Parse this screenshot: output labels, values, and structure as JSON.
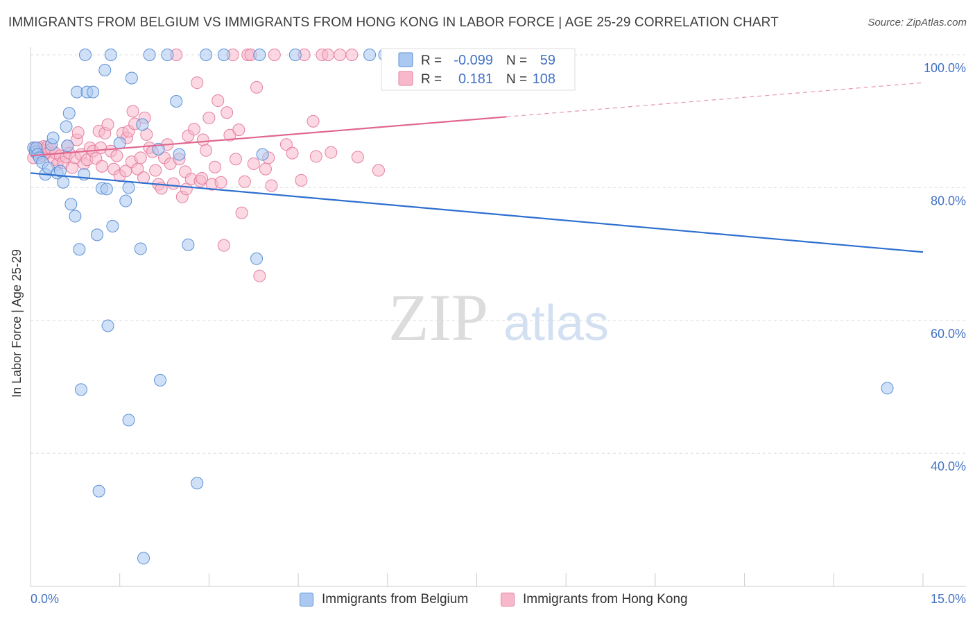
{
  "title": "IMMIGRANTS FROM BELGIUM VS IMMIGRANTS FROM HONG KONG IN LABOR FORCE | AGE 25-29 CORRELATION CHART",
  "source": "Source: ZipAtlas.com",
  "watermark": {
    "zip": "ZIP",
    "atlas": "atlas"
  },
  "colors": {
    "blue_fill": "#aac8f0",
    "blue_stroke": "#5b8fd6",
    "blue_line": "#2e6fcf",
    "pink_fill": "#f7b8cb",
    "pink_stroke": "#e47fa2",
    "pink_line": "#e0658f",
    "axis_text": "#4472c4",
    "grid": "#dddddd"
  },
  "stats": {
    "belgium": {
      "r_label": "R =",
      "r_value": "-0.099",
      "n_label": "N =",
      "n_value": "59"
    },
    "hongkong": {
      "r_label": "R =",
      "r_value": "0.181",
      "n_label": "N =",
      "n_value": "108"
    }
  },
  "legend": {
    "belgium": "Immigrants from Belgium",
    "hongkong": "Immigrants from Hong Kong"
  },
  "chart_data": {
    "type": "scatter",
    "title": "IMMIGRANTS FROM BELGIUM VS IMMIGRANTS FROM HONG KONG IN LABOR FORCE | AGE 25-29 CORRELATION CHART",
    "xlabel": "",
    "ylabel": "In Labor Force | Age 25-29",
    "xlim": [
      0,
      15
    ],
    "ylim": [
      20,
      102
    ],
    "x_tick_labels": [
      "0.0%",
      "15.0%"
    ],
    "y_ticks": [
      {
        "value": 100,
        "label": "100.0%"
      },
      {
        "value": 80,
        "label": "80.0%"
      },
      {
        "value": 60,
        "label": "60.0%"
      },
      {
        "value": 40,
        "label": "40.0%"
      }
    ],
    "grid": true,
    "legend_position": "bottom-center",
    "series": [
      {
        "name": "Immigrants from Belgium",
        "color": "blue",
        "r": -0.099,
        "n": 59,
        "trend": {
          "x": [
            0,
            15
          ],
          "y": [
            82.2,
            70.3
          ],
          "dashed_from": null
        },
        "points": [
          [
            0.05,
            86
          ],
          [
            0.08,
            85.4
          ],
          [
            0.1,
            86
          ],
          [
            0.12,
            85
          ],
          [
            0.15,
            84.5
          ],
          [
            0.2,
            83.8
          ],
          [
            0.25,
            82
          ],
          [
            0.3,
            83
          ],
          [
            0.35,
            86.5
          ],
          [
            0.38,
            87.5
          ],
          [
            0.45,
            82.2
          ],
          [
            0.5,
            82.5
          ],
          [
            0.55,
            80.8
          ],
          [
            0.6,
            89.2
          ],
          [
            0.65,
            91.2
          ],
          [
            0.62,
            86.3
          ],
          [
            0.68,
            77.5
          ],
          [
            0.75,
            75.7
          ],
          [
            0.78,
            94.4
          ],
          [
            0.82,
            70.7
          ],
          [
            0.85,
            49.6
          ],
          [
            0.9,
            82
          ],
          [
            0.92,
            100
          ],
          [
            0.95,
            94.4
          ],
          [
            1.05,
            94.4
          ],
          [
            1.12,
            72.9
          ],
          [
            1.15,
            34.3
          ],
          [
            1.2,
            79.9
          ],
          [
            1.25,
            97.7
          ],
          [
            1.28,
            79.8
          ],
          [
            1.3,
            59.2
          ],
          [
            1.35,
            100
          ],
          [
            1.38,
            74.2
          ],
          [
            1.5,
            86.7
          ],
          [
            1.6,
            78
          ],
          [
            1.65,
            45
          ],
          [
            1.65,
            80
          ],
          [
            1.7,
            96.5
          ],
          [
            1.85,
            70.8
          ],
          [
            1.88,
            89.5
          ],
          [
            1.9,
            24.2
          ],
          [
            2.0,
            100
          ],
          [
            2.15,
            85.8
          ],
          [
            2.18,
            51
          ],
          [
            2.3,
            100
          ],
          [
            2.45,
            93
          ],
          [
            2.5,
            85
          ],
          [
            2.65,
            71.4
          ],
          [
            2.8,
            35.5
          ],
          [
            2.95,
            100
          ],
          [
            3.25,
            100
          ],
          [
            3.8,
            69.3
          ],
          [
            3.85,
            100
          ],
          [
            3.9,
            85
          ],
          [
            4.45,
            100
          ],
          [
            5.7,
            100
          ],
          [
            5.95,
            100
          ],
          [
            6.0,
            99.7
          ],
          [
            14.4,
            49.8
          ]
        ]
      },
      {
        "name": "Immigrants from Hong Kong",
        "color": "pink",
        "r": 0.181,
        "n": 108,
        "trend": {
          "x": [
            0,
            15
          ],
          "y": [
            84.8,
            95.8
          ],
          "dashed_from": 8.0
        },
        "points": [
          [
            0.05,
            84.5
          ],
          [
            0.08,
            86
          ],
          [
            0.12,
            85.5
          ],
          [
            0.15,
            86
          ],
          [
            0.18,
            85
          ],
          [
            0.2,
            84.8
          ],
          [
            0.22,
            86.2
          ],
          [
            0.25,
            85.6
          ],
          [
            0.28,
            86.1
          ],
          [
            0.3,
            85.3
          ],
          [
            0.35,
            85.8
          ],
          [
            0.4,
            84.2
          ],
          [
            0.42,
            85.2
          ],
          [
            0.45,
            83.5
          ],
          [
            0.5,
            84.8
          ],
          [
            0.55,
            83.8
          ],
          [
            0.6,
            84.6
          ],
          [
            0.62,
            86.3
          ],
          [
            0.65,
            85.2
          ],
          [
            0.7,
            83
          ],
          [
            0.75,
            84.5
          ],
          [
            0.78,
            87.2
          ],
          [
            0.8,
            88.3
          ],
          [
            0.85,
            85
          ],
          [
            0.9,
            83.6
          ],
          [
            0.95,
            84.2
          ],
          [
            1.0,
            86
          ],
          [
            1.05,
            85.5
          ],
          [
            1.1,
            84.4
          ],
          [
            1.15,
            88.5
          ],
          [
            1.18,
            86
          ],
          [
            1.2,
            83.2
          ],
          [
            1.25,
            88.2
          ],
          [
            1.3,
            89.5
          ],
          [
            1.35,
            85.5
          ],
          [
            1.4,
            82.8
          ],
          [
            1.45,
            84.8
          ],
          [
            1.5,
            81.8
          ],
          [
            1.55,
            88.2
          ],
          [
            1.6,
            82.5
          ],
          [
            1.62,
            87.5
          ],
          [
            1.65,
            88.5
          ],
          [
            1.7,
            83.9
          ],
          [
            1.72,
            91.5
          ],
          [
            1.75,
            89.6
          ],
          [
            1.8,
            82.8
          ],
          [
            1.85,
            84.5
          ],
          [
            1.9,
            81.5
          ],
          [
            1.92,
            90.5
          ],
          [
            1.95,
            88
          ],
          [
            2.0,
            86
          ],
          [
            2.05,
            85.4
          ],
          [
            2.1,
            82.6
          ],
          [
            2.15,
            80.5
          ],
          [
            2.2,
            79.9
          ],
          [
            2.25,
            84.5
          ],
          [
            2.3,
            86.5
          ],
          [
            2.35,
            83.6
          ],
          [
            2.4,
            80.6
          ],
          [
            2.45,
            100
          ],
          [
            2.5,
            84.3
          ],
          [
            2.55,
            78.6
          ],
          [
            2.6,
            82.4
          ],
          [
            2.62,
            79.8
          ],
          [
            2.65,
            87.8
          ],
          [
            2.7,
            81.3
          ],
          [
            2.75,
            88.8
          ],
          [
            2.8,
            95.8
          ],
          [
            2.85,
            81
          ],
          [
            2.88,
            81.4
          ],
          [
            2.9,
            87.2
          ],
          [
            2.95,
            85.6
          ],
          [
            3.0,
            90.5
          ],
          [
            3.05,
            80.5
          ],
          [
            3.1,
            83.1
          ],
          [
            3.15,
            93.1
          ],
          [
            3.2,
            80.8
          ],
          [
            3.25,
            71.3
          ],
          [
            3.3,
            91.3
          ],
          [
            3.35,
            87.9
          ],
          [
            3.4,
            100
          ],
          [
            3.45,
            84.3
          ],
          [
            3.5,
            88.7
          ],
          [
            3.55,
            76.2
          ],
          [
            3.6,
            80.9
          ],
          [
            3.65,
            100
          ],
          [
            3.7,
            100
          ],
          [
            3.75,
            83.6
          ],
          [
            3.8,
            95.1
          ],
          [
            3.85,
            66.7
          ],
          [
            3.95,
            82.8
          ],
          [
            4.0,
            84.5
          ],
          [
            4.05,
            80.3
          ],
          [
            4.1,
            100
          ],
          [
            4.3,
            86.5
          ],
          [
            4.4,
            85.2
          ],
          [
            4.55,
            81.1
          ],
          [
            4.6,
            100
          ],
          [
            4.75,
            90
          ],
          [
            4.8,
            84.7
          ],
          [
            4.9,
            100
          ],
          [
            5.0,
            100
          ],
          [
            5.05,
            85.3
          ],
          [
            5.2,
            100
          ],
          [
            5.4,
            100
          ],
          [
            5.5,
            84.6
          ],
          [
            5.85,
            82.6
          ],
          [
            6.2,
            100
          ]
        ]
      }
    ]
  }
}
